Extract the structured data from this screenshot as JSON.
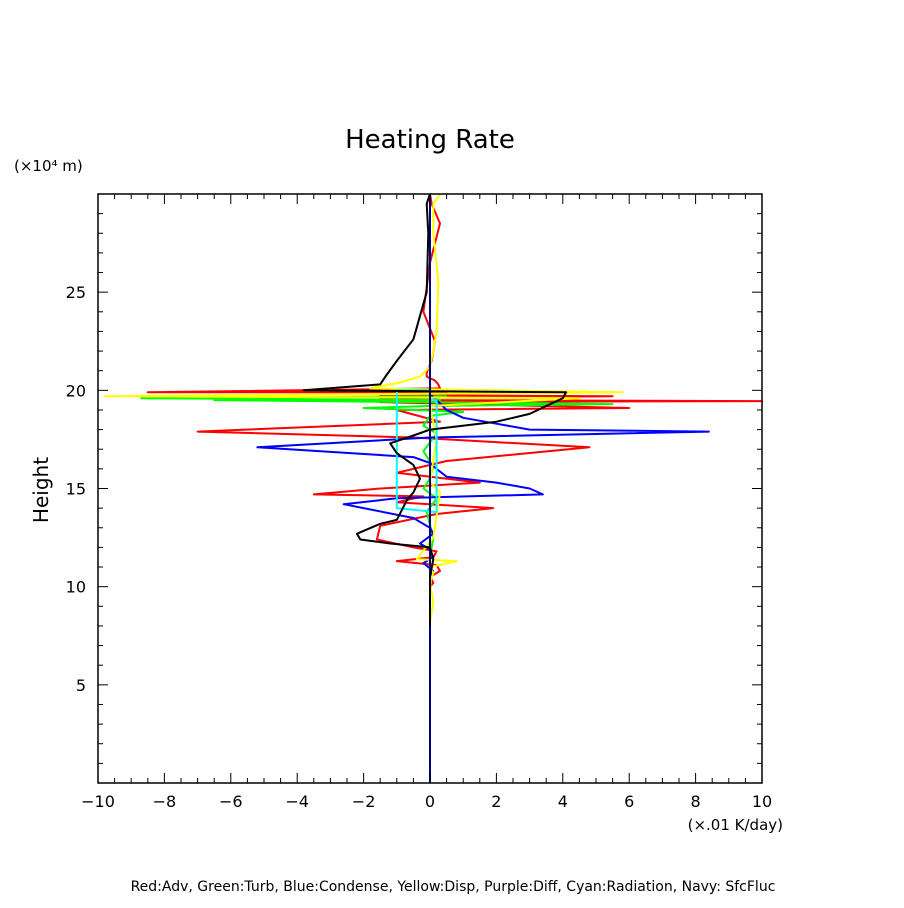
{
  "chart_data": {
    "type": "line",
    "title": "Heating Rate",
    "ylabel": "Height",
    "y_unit": "(×10⁴ m)",
    "x_unit": "(×.01 K/day)",
    "xlim": [
      -10,
      10
    ],
    "ylim": [
      0,
      30
    ],
    "x_ticks": [
      "−10",
      "−8",
      "−6",
      "−4",
      "−2",
      "0",
      "2",
      "4",
      "6",
      "8",
      "10"
    ],
    "y_ticks": [
      "5",
      "10",
      "15",
      "20",
      "25"
    ],
    "grid": false,
    "legend_text": "Red:Adv, Green:Turb, Blue:Condense, Yellow:Disp, Purple:Diff, Cyan:Radiation, Navy: SfcFluc",
    "series": [
      {
        "name": "Adv",
        "color": "#ff0000",
        "x": [
          0.0,
          0.05,
          0.3,
          0.0,
          -0.2,
          0.15,
          0.05,
          -0.1,
          -0.1,
          0.15,
          0.25,
          0.3,
          -8.5,
          0.5,
          -1.5,
          5.5,
          -1.5,
          -1.0,
          10.0,
          -1.5,
          6.0,
          -1.0,
          0.3,
          -7.0,
          -0.5,
          4.8,
          0.5,
          -1.0,
          1.5,
          -1.5,
          -3.5,
          -0.2,
          -1.0,
          1.9,
          0.2,
          -1.5,
          -1.6,
          -0.5,
          0.2,
          0.1,
          -1.0,
          0.2,
          0.3,
          0.0,
          0.1,
          0.0,
          0.0
        ],
        "y": [
          30.0,
          29.5,
          28.5,
          26.5,
          24.0,
          22.5,
          21.5,
          20.9,
          20.7,
          20.5,
          20.3,
          20.1,
          19.9,
          19.9,
          19.75,
          19.7,
          19.6,
          19.5,
          19.45,
          19.4,
          19.1,
          19.0,
          18.4,
          17.9,
          17.6,
          17.1,
          16.4,
          15.8,
          15.3,
          15.0,
          14.7,
          14.6,
          14.3,
          14.0,
          13.7,
          13.1,
          12.4,
          12.0,
          11.8,
          11.5,
          11.3,
          11.1,
          10.8,
          10.5,
          10.2,
          10.0,
          9.9
        ]
      },
      {
        "name": "Turb",
        "color": "#00ff00",
        "x": [
          0.5,
          -8.7,
          0.3,
          -6.5,
          5.5,
          0.0,
          -2.0,
          1.0,
          0.0,
          -0.2,
          0.2,
          -0.2,
          0.1,
          0.0,
          -0.2,
          0.2,
          -0.1,
          0.1,
          0.0,
          0.0,
          0.0
        ],
        "y": [
          19.7,
          19.6,
          19.5,
          19.5,
          19.3,
          19.2,
          19.1,
          18.9,
          18.7,
          18.2,
          17.8,
          16.9,
          16.1,
          15.5,
          15.0,
          14.5,
          13.8,
          12.5,
          11.5,
          10.5,
          10.0
        ]
      },
      {
        "name": "Condense",
        "color": "#0000ff",
        "x": [
          0.0,
          0.0,
          0.2,
          0.5,
          1.0,
          2.0,
          3.0,
          8.4,
          0.0,
          -5.2,
          -0.5,
          0.0,
          0.2,
          0.5,
          2.0,
          3.0,
          3.4,
          -1.0,
          -2.6,
          -0.5,
          0.0,
          0.1,
          -0.3,
          0.0,
          0.1,
          -0.2,
          0.1,
          0.0
        ],
        "y": [
          0.0,
          19.8,
          19.5,
          19.0,
          18.6,
          18.3,
          18.0,
          17.9,
          17.6,
          17.1,
          16.6,
          16.3,
          16.0,
          15.6,
          15.3,
          15.0,
          14.7,
          14.5,
          14.2,
          13.5,
          13.0,
          12.7,
          12.2,
          11.9,
          11.5,
          11.2,
          10.8,
          10.5
        ]
      },
      {
        "name": "Disp",
        "color": "#ffff00",
        "x": [
          0.3,
          0.1,
          0.1,
          0.25,
          0.2,
          0.1,
          0.0,
          -0.3,
          -0.9,
          -1.8,
          5.8,
          -9.8,
          4.5,
          0.0,
          0.2,
          0.0,
          0.2,
          0.3,
          0.1,
          -0.4,
          0.8,
          0.0,
          0.1,
          0.0,
          0.1,
          0.0,
          0.0
        ],
        "y": [
          30.0,
          29.5,
          28.0,
          25.5,
          23.0,
          22.0,
          21.2,
          20.7,
          20.4,
          20.1,
          19.9,
          19.7,
          19.6,
          19.2,
          17.5,
          15.3,
          15.0,
          14.8,
          12.5,
          11.4,
          11.3,
          11.0,
          10.7,
          10.2,
          9.2,
          8.2,
          7.8
        ]
      },
      {
        "name": "Radiation",
        "color": "#00ffff",
        "x": [
          0.0,
          -1.0,
          -1.0,
          0.2,
          0.2,
          0.0
        ],
        "y": [
          20.0,
          20.0,
          14.0,
          13.8,
          19.5,
          19.5
        ]
      },
      {
        "name": "SfcFluc",
        "color": "#000080",
        "x": [
          0.0,
          0.0
        ],
        "y": [
          0.0,
          30.0
        ]
      },
      {
        "name": "",
        "color": "#000000",
        "x": [
          0.0,
          -0.1,
          -0.05,
          -0.1,
          -0.5,
          -1.0,
          -1.3,
          -1.5,
          -3.8,
          4.1,
          4.0,
          3.0,
          2.0,
          0.0,
          -0.5,
          -1.2,
          -1.0,
          -0.5,
          -0.3,
          -0.5,
          -0.7,
          -1.0,
          -1.5,
          -2.2,
          -2.1,
          -1.2,
          0.0,
          0.1,
          0.0,
          0.0
        ],
        "y": [
          30.0,
          29.5,
          28.0,
          25.0,
          22.6,
          21.5,
          20.8,
          20.3,
          20.0,
          19.9,
          19.6,
          18.8,
          18.4,
          18.0,
          17.7,
          17.3,
          16.8,
          16.2,
          15.5,
          14.8,
          14.4,
          13.4,
          13.2,
          12.7,
          12.4,
          12.2,
          12.0,
          11.4,
          10.5,
          8.0
        ]
      }
    ]
  }
}
